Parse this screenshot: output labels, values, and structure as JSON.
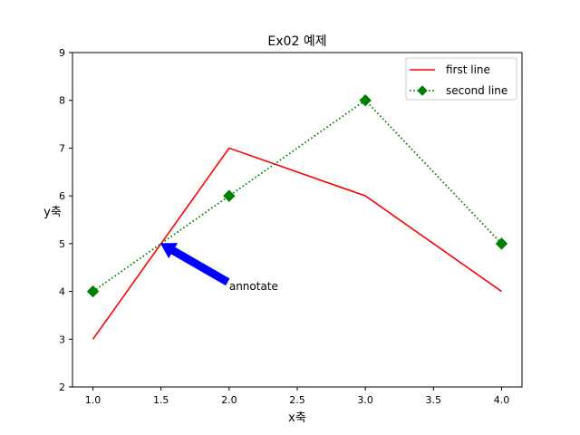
{
  "chart_data": {
    "type": "line",
    "title": "Ex02 예제",
    "xlabel": "x축",
    "ylabel": "y축",
    "xlim": [
      0.85,
      4.15
    ],
    "ylim": [
      2,
      9
    ],
    "xticks": [
      "1.0",
      "1.5",
      "2.0",
      "2.5",
      "3.0",
      "3.5",
      "4.0"
    ],
    "yticks": [
      "2",
      "3",
      "4",
      "5",
      "6",
      "7",
      "8",
      "9"
    ],
    "grid": false,
    "legend_position": "top-right",
    "series": [
      {
        "name": "first line",
        "x": [
          1,
          2,
          3,
          4
        ],
        "y": [
          3,
          7,
          6,
          4
        ],
        "color": "#ff0000",
        "line_style": "solid",
        "marker": "none"
      },
      {
        "name": "second line",
        "x": [
          1,
          2,
          3,
          4
        ],
        "y": [
          4,
          6,
          8,
          5
        ],
        "color": "#008000",
        "line_style": "dotted",
        "marker": "diamond"
      }
    ],
    "annotation": {
      "text": "annotate",
      "point": [
        1.5,
        5
      ],
      "text_at": [
        2,
        4.2
      ],
      "arrow_color": "#0000ff"
    }
  }
}
